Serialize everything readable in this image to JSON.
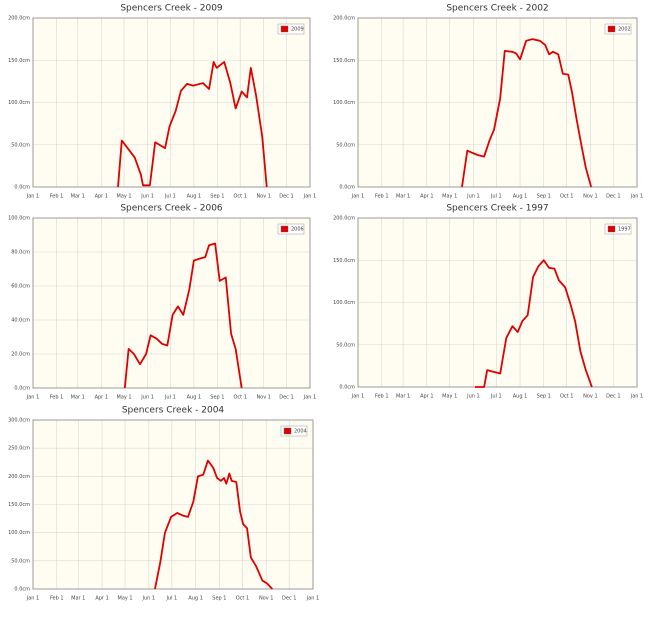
{
  "chart_data": [
    {
      "type": "line",
      "title": "Spencers Creek - 2009",
      "legend": "top-right",
      "grid": true,
      "xlim": [
        0,
        365
      ],
      "xticks": [
        {
          "value": 0,
          "label": "Jan 1"
        },
        {
          "value": 31,
          "label": "Feb 1"
        },
        {
          "value": 59,
          "label": "Mar 1"
        },
        {
          "value": 90,
          "label": "Apr 1"
        },
        {
          "value": 120,
          "label": "May 1"
        },
        {
          "value": 151,
          "label": "Jun 1"
        },
        {
          "value": 181,
          "label": "Jul 1"
        },
        {
          "value": 212,
          "label": "Aug 1"
        },
        {
          "value": 243,
          "label": "Sep 1"
        },
        {
          "value": 273,
          "label": "Oct 1"
        },
        {
          "value": 304,
          "label": "Nov 1"
        },
        {
          "value": 334,
          "label": "Dec 1"
        },
        {
          "value": 365,
          "label": "Jan 1"
        }
      ],
      "ylim": [
        0,
        200
      ],
      "yticks": [
        {
          "value": 0,
          "label": "0.0cm"
        },
        {
          "value": 50,
          "label": "50.0cm"
        },
        {
          "value": 100,
          "label": "100.0cm"
        },
        {
          "value": 150,
          "label": "150.0cm"
        },
        {
          "value": 200,
          "label": "200.0cm"
        }
      ],
      "x": [
        112,
        117,
        134,
        142,
        145,
        154,
        161,
        174,
        180,
        188,
        195,
        203,
        211,
        224,
        232,
        238,
        242,
        252,
        260,
        267,
        275,
        282,
        287,
        294,
        302,
        308
      ],
      "series": [
        {
          "name": "2009",
          "color": "#e00000",
          "values": [
            0,
            55,
            35,
            15,
            2,
            2,
            53,
            46,
            72,
            90,
            114,
            122,
            120,
            123,
            116,
            148,
            141,
            148,
            123,
            93,
            113,
            106,
            141,
            108,
            60,
            0
          ]
        }
      ]
    },
    {
      "type": "line",
      "title": "Spencers Creek - 2002",
      "legend": "top-right",
      "grid": true,
      "xlim": [
        0,
        365
      ],
      "xticks": [
        {
          "value": 0,
          "label": "Jan 1"
        },
        {
          "value": 31,
          "label": "Feb 1"
        },
        {
          "value": 59,
          "label": "Mar 1"
        },
        {
          "value": 90,
          "label": "Apr 1"
        },
        {
          "value": 120,
          "label": "May 1"
        },
        {
          "value": 151,
          "label": "Jun 1"
        },
        {
          "value": 181,
          "label": "Jul 1"
        },
        {
          "value": 212,
          "label": "Aug 1"
        },
        {
          "value": 243,
          "label": "Sep 1"
        },
        {
          "value": 273,
          "label": "Oct 1"
        },
        {
          "value": 304,
          "label": "Nov 1"
        },
        {
          "value": 334,
          "label": "Dec 1"
        },
        {
          "value": 365,
          "label": "Jan 1"
        }
      ],
      "ylim": [
        0,
        200
      ],
      "yticks": [
        {
          "value": 0,
          "label": "0.0cm"
        },
        {
          "value": 50,
          "label": "50.0cm"
        },
        {
          "value": 100,
          "label": "100.0cm"
        },
        {
          "value": 150,
          "label": "150.0cm"
        },
        {
          "value": 200,
          "label": "200.0cm"
        }
      ],
      "x": [
        136,
        143,
        156,
        165,
        172,
        178,
        186,
        192,
        202,
        207,
        212,
        220,
        228,
        238,
        245,
        250,
        255,
        262,
        268,
        275,
        280,
        286,
        293,
        298,
        305
      ],
      "series": [
        {
          "name": "2002",
          "color": "#e00000",
          "values": [
            0,
            43,
            38,
            36,
            55,
            68,
            105,
            161,
            160,
            158,
            151,
            173,
            175,
            173,
            168,
            157,
            160,
            157,
            134,
            133,
            112,
            80,
            46,
            23,
            0
          ]
        }
      ]
    },
    {
      "type": "line",
      "title": "Spencers Creek - 2006",
      "legend": "top-right",
      "grid": true,
      "xlim": [
        0,
        365
      ],
      "xticks": [
        {
          "value": 0,
          "label": "Jan 1"
        },
        {
          "value": 31,
          "label": "Feb 1"
        },
        {
          "value": 59,
          "label": "Mar 1"
        },
        {
          "value": 90,
          "label": "Apr 1"
        },
        {
          "value": 120,
          "label": "May 1"
        },
        {
          "value": 151,
          "label": "Jun 1"
        },
        {
          "value": 181,
          "label": "Jul 1"
        },
        {
          "value": 212,
          "label": "Aug 1"
        },
        {
          "value": 243,
          "label": "Sep 1"
        },
        {
          "value": 273,
          "label": "Oct 1"
        },
        {
          "value": 304,
          "label": "Nov 1"
        },
        {
          "value": 334,
          "label": "Dec 1"
        },
        {
          "value": 365,
          "label": "Jan 1"
        }
      ],
      "ylim": [
        0,
        100
      ],
      "yticks": [
        {
          "value": 0,
          "label": "0.0cm"
        },
        {
          "value": 20,
          "label": "20.0cm"
        },
        {
          "value": 40,
          "label": "40.0cm"
        },
        {
          "value": 60,
          "label": "60.0cm"
        },
        {
          "value": 80,
          "label": "80.0cm"
        },
        {
          "value": 100,
          "label": "100.0cm"
        }
      ],
      "x": [
        121,
        126,
        133,
        141,
        149,
        155,
        163,
        170,
        177,
        184,
        191,
        198,
        206,
        212,
        219,
        227,
        232,
        240,
        246,
        254,
        261,
        267,
        275
      ],
      "series": [
        {
          "name": "2006",
          "color": "#e00000",
          "values": [
            0,
            23,
            20,
            14,
            20,
            31,
            29,
            26,
            25,
            43,
            48,
            43,
            58,
            75,
            76,
            77,
            84,
            85,
            63,
            65,
            32,
            23,
            0
          ]
        }
      ]
    },
    {
      "type": "line",
      "title": "Spencers Creek - 1997",
      "legend": "top-right",
      "grid": true,
      "xlim": [
        0,
        365
      ],
      "xticks": [
        {
          "value": 0,
          "label": "Jan 1"
        },
        {
          "value": 31,
          "label": "Feb 1"
        },
        {
          "value": 59,
          "label": "Mar 1"
        },
        {
          "value": 90,
          "label": "Apr 1"
        },
        {
          "value": 120,
          "label": "May 1"
        },
        {
          "value": 151,
          "label": "Jun 1"
        },
        {
          "value": 181,
          "label": "Jul 1"
        },
        {
          "value": 212,
          "label": "Aug 1"
        },
        {
          "value": 243,
          "label": "Sep 1"
        },
        {
          "value": 273,
          "label": "Oct 1"
        },
        {
          "value": 304,
          "label": "Nov 1"
        },
        {
          "value": 334,
          "label": "Dec 1"
        },
        {
          "value": 365,
          "label": "Jan 1"
        }
      ],
      "ylim": [
        0,
        200
      ],
      "yticks": [
        {
          "value": 0,
          "label": "0.0cm"
        },
        {
          "value": 50,
          "label": "50.0cm"
        },
        {
          "value": 100,
          "label": "100.0cm"
        },
        {
          "value": 150,
          "label": "150.0cm"
        },
        {
          "value": 200,
          "label": "200.0cm"
        }
      ],
      "x": [
        153,
        165,
        169,
        177,
        186,
        194,
        202,
        209,
        215,
        222,
        229,
        236,
        243,
        250,
        257,
        263,
        271,
        278,
        284,
        291,
        298,
        306
      ],
      "series": [
        {
          "name": "1997",
          "color": "#e00000",
          "values": [
            0,
            0,
            20,
            18,
            16,
            58,
            72,
            65,
            78,
            85,
            130,
            143,
            150,
            141,
            140,
            126,
            118,
            98,
            78,
            42,
            20,
            0
          ]
        }
      ]
    },
    {
      "type": "line",
      "title": "Spencers Creek - 2004",
      "legend": "top-right",
      "grid": true,
      "xlim": [
        0,
        365
      ],
      "xticks": [
        {
          "value": 0,
          "label": "Jan 1"
        },
        {
          "value": 31,
          "label": "Feb 1"
        },
        {
          "value": 59,
          "label": "Mar 1"
        },
        {
          "value": 90,
          "label": "Apr 1"
        },
        {
          "value": 120,
          "label": "May 1"
        },
        {
          "value": 151,
          "label": "Jun 1"
        },
        {
          "value": 181,
          "label": "Jul 1"
        },
        {
          "value": 212,
          "label": "Aug 1"
        },
        {
          "value": 243,
          "label": "Sep 1"
        },
        {
          "value": 273,
          "label": "Oct 1"
        },
        {
          "value": 304,
          "label": "Nov 1"
        },
        {
          "value": 334,
          "label": "Dec 1"
        },
        {
          "value": 365,
          "label": "Jan 1"
        }
      ],
      "ylim": [
        0,
        300
      ],
      "yticks": [
        {
          "value": 0,
          "label": "0.0cm"
        },
        {
          "value": 50,
          "label": "50.0cm"
        },
        {
          "value": 100,
          "label": "100.0cm"
        },
        {
          "value": 150,
          "label": "150.0cm"
        },
        {
          "value": 200,
          "label": "200.0cm"
        },
        {
          "value": 250,
          "label": "250.0cm"
        },
        {
          "value": 300,
          "label": "300.0cm"
        }
      ],
      "x": [
        159,
        166,
        172,
        180,
        188,
        196,
        202,
        209,
        215,
        222,
        228,
        235,
        240,
        245,
        249,
        252,
        256,
        259,
        265,
        270,
        274,
        279,
        284,
        291,
        299,
        305,
        312
      ],
      "series": [
        {
          "name": "2004",
          "color": "#e00000",
          "values": [
            0,
            48,
            100,
            128,
            135,
            130,
            128,
            155,
            200,
            203,
            228,
            215,
            197,
            192,
            197,
            187,
            205,
            192,
            190,
            137,
            115,
            108,
            56,
            40,
            15,
            10,
            0
          ]
        }
      ]
    }
  ]
}
